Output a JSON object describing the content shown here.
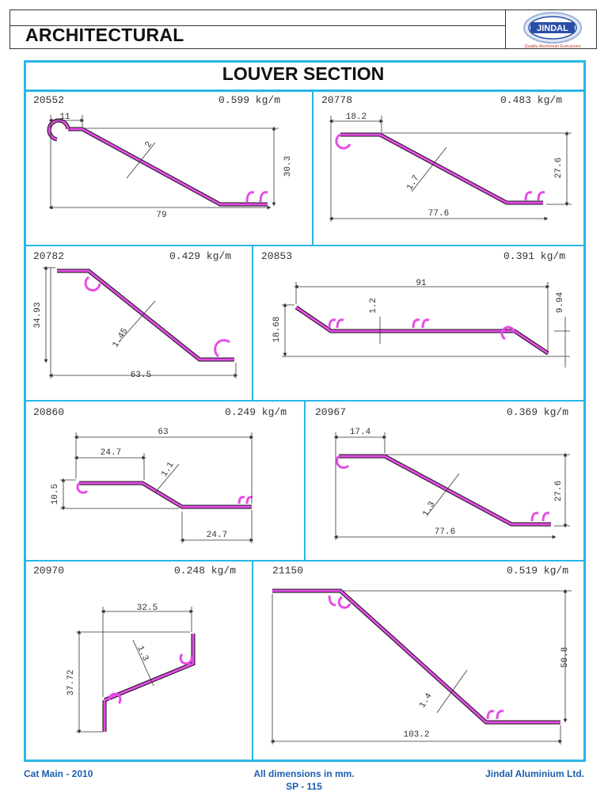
{
  "header": {
    "title": "ARCHITECTURAL",
    "logo_text": "JINDAL",
    "logo_tagline": "Quality Aluminium Extrusions"
  },
  "main_title": "LOUVER SECTION",
  "sections": [
    {
      "code": "20552",
      "weight": "0.599 kg/m",
      "dims": [
        "11",
        "2",
        "30.3",
        "79"
      ]
    },
    {
      "code": "20778",
      "weight": "0.483 kg/m",
      "dims": [
        "18.2",
        "1.7",
        "27.6",
        "77.6"
      ]
    },
    {
      "code": "20782",
      "weight": "0.429 kg/m",
      "dims": [
        "34.93",
        "1.45",
        "63.5"
      ]
    },
    {
      "code": "20853",
      "weight": "0.391 kg/m",
      "dims": [
        "91",
        "1.2",
        "9.94",
        "18.68"
      ]
    },
    {
      "code": "20860",
      "weight": "0.249 kg/m",
      "dims": [
        "63",
        "24.7",
        "1.1",
        "10.5",
        "24.7"
      ]
    },
    {
      "code": "20967",
      "weight": "0.369 kg/m",
      "dims": [
        "17.4",
        "27.6",
        "1.3",
        "77.6"
      ]
    },
    {
      "code": "20970",
      "weight": "0.248 kg/m",
      "dims": [
        "32.5",
        "1.3",
        "37.72"
      ]
    },
    {
      "code": "21150",
      "weight": "0.519 kg/m",
      "dims": [
        "50.8",
        "1.4",
        "103.2"
      ]
    }
  ],
  "footer": {
    "left": "Cat Main - 2010",
    "center": "All dimensions in mm.",
    "page": "SP - 115",
    "right": "Jindal Aluminium Ltd."
  },
  "colors": {
    "frame": "#29b6e8",
    "profile": "#e64ce6",
    "footer": "#1b5fb0"
  }
}
